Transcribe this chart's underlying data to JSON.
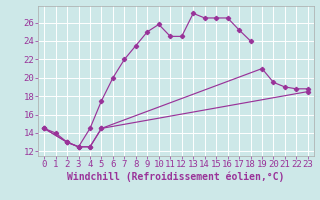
{
  "background_color": "#cde8e8",
  "line_color": "#993399",
  "xlim": [
    -0.5,
    23.5
  ],
  "ylim": [
    11.5,
    27.8
  ],
  "xticks": [
    0,
    1,
    2,
    3,
    4,
    5,
    6,
    7,
    8,
    9,
    10,
    11,
    12,
    13,
    14,
    15,
    16,
    17,
    18,
    19,
    20,
    21,
    22,
    23
  ],
  "yticks": [
    12,
    14,
    16,
    18,
    20,
    22,
    24,
    26
  ],
  "line1_x": [
    0,
    1,
    2,
    3,
    4,
    5,
    6,
    7,
    8,
    9,
    10,
    11,
    12,
    13,
    14,
    15,
    16,
    17,
    18
  ],
  "line1_y": [
    14.5,
    14.0,
    13.0,
    12.5,
    14.5,
    17.5,
    20.0,
    22.0,
    23.5,
    25.0,
    25.8,
    24.5,
    24.5,
    27.0,
    26.5,
    26.5,
    26.5,
    25.2,
    24.0
  ],
  "line2_x": [
    0,
    2,
    3,
    4,
    5,
    19,
    20,
    21,
    22,
    23
  ],
  "line2_y": [
    14.5,
    13.0,
    12.5,
    12.5,
    14.5,
    21.0,
    19.5,
    19.0,
    18.8,
    18.8
  ],
  "line3_x": [
    0,
    2,
    3,
    4,
    5,
    23
  ],
  "line3_y": [
    14.5,
    13.0,
    12.5,
    12.5,
    14.5,
    18.5
  ],
  "xlabel": "Windchill (Refroidissement éolien,°C)",
  "tick_fontsize": 6.5,
  "label_fontsize": 7
}
